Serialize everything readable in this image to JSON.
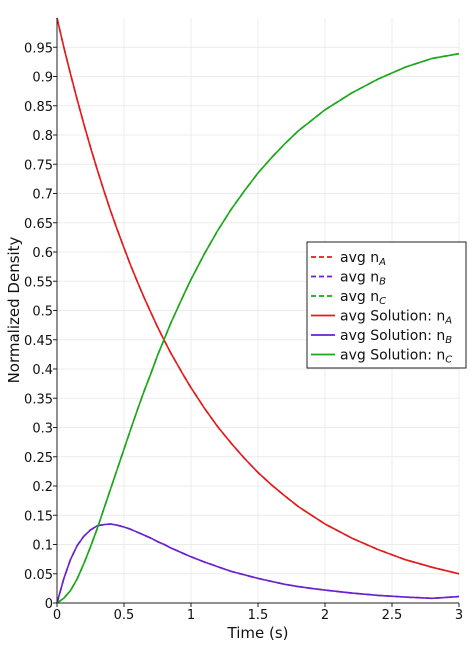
{
  "chart_data": {
    "type": "line",
    "xlabel": "Time (s)",
    "ylabel": "Normalized Density",
    "xlim": [
      0,
      3
    ],
    "ylim": [
      0,
      1
    ],
    "x_ticks": [
      "0",
      "0.5",
      "1",
      "1.5",
      "2",
      "2.5",
      "3"
    ],
    "x_tick_values": [
      0,
      0.5,
      1,
      1.5,
      2,
      2.5,
      3
    ],
    "y_ticks": [
      "0",
      "0.05",
      "0.1",
      "0.15",
      "0.2",
      "0.25",
      "0.3",
      "0.35",
      "0.4",
      "0.45",
      "0.5",
      "0.55",
      "0.6",
      "0.65",
      "0.7",
      "0.75",
      "0.8",
      "0.85",
      "0.9",
      "0.95"
    ],
    "y_tick_values": [
      0,
      0.05,
      0.1,
      0.15,
      0.2,
      0.25,
      0.3,
      0.35,
      0.4,
      0.45,
      0.5,
      0.55,
      0.6,
      0.65,
      0.7,
      0.75,
      0.8,
      0.85,
      0.9,
      0.95
    ],
    "grid": true,
    "legend_placement": "right",
    "x": [
      0,
      0.05,
      0.1,
      0.15,
      0.2,
      0.25,
      0.3,
      0.35,
      0.4,
      0.45,
      0.5,
      0.55,
      0.6,
      0.65,
      0.7,
      0.75,
      0.8,
      0.85,
      0.9,
      0.95,
      1.0,
      1.1,
      1.2,
      1.3,
      1.4,
      1.5,
      1.6,
      1.7,
      1.8,
      1.9,
      2.0,
      2.2,
      2.4,
      2.6,
      2.8,
      3.0
    ],
    "series": [
      {
        "name": "avg n_A",
        "name_main": "avg n",
        "name_sub": "A",
        "color": "#e41a1c",
        "dash": true,
        "values": [
          1.0,
          0.951,
          0.905,
          0.861,
          0.819,
          0.779,
          0.741,
          0.705,
          0.67,
          0.638,
          0.607,
          0.577,
          0.549,
          0.522,
          0.497,
          0.472,
          0.449,
          0.427,
          0.407,
          0.387,
          0.368,
          0.333,
          0.301,
          0.273,
          0.247,
          0.223,
          0.202,
          0.183,
          0.165,
          0.15,
          0.135,
          0.111,
          0.091,
          0.074,
          0.061,
          0.05
        ]
      },
      {
        "name": "avg n_B",
        "name_main": "avg n",
        "name_sub": "B",
        "color": "#6a1fd0",
        "dash": true,
        "values": [
          0,
          0.041,
          0.074,
          0.098,
          0.114,
          0.125,
          0.132,
          0.134,
          0.135,
          0.133,
          0.13,
          0.126,
          0.121,
          0.116,
          0.111,
          0.105,
          0.1,
          0.094,
          0.089,
          0.084,
          0.079,
          0.07,
          0.062,
          0.054,
          0.048,
          0.042,
          0.037,
          0.032,
          0.028,
          0.025,
          0.022,
          0.017,
          0.013,
          0.01,
          0.008,
          0.011
        ]
      },
      {
        "name": "avg n_C",
        "name_main": "avg n",
        "name_sub": "C",
        "color": "#1aa81a",
        "dash": true,
        "values": [
          0,
          0.008,
          0.021,
          0.041,
          0.067,
          0.096,
          0.127,
          0.161,
          0.195,
          0.229,
          0.263,
          0.297,
          0.33,
          0.362,
          0.392,
          0.423,
          0.451,
          0.479,
          0.504,
          0.529,
          0.553,
          0.597,
          0.637,
          0.673,
          0.705,
          0.735,
          0.761,
          0.785,
          0.807,
          0.825,
          0.843,
          0.872,
          0.896,
          0.916,
          0.931,
          0.939
        ]
      },
      {
        "name": "avg Solution: n_A",
        "name_main": "avg Solution: n",
        "name_sub": "A",
        "color": "#e41a1c",
        "dash": false,
        "values": [
          1.0,
          0.951,
          0.905,
          0.861,
          0.819,
          0.779,
          0.741,
          0.705,
          0.67,
          0.638,
          0.607,
          0.577,
          0.549,
          0.522,
          0.497,
          0.472,
          0.449,
          0.427,
          0.407,
          0.387,
          0.368,
          0.333,
          0.301,
          0.273,
          0.247,
          0.223,
          0.202,
          0.183,
          0.165,
          0.15,
          0.135,
          0.111,
          0.091,
          0.074,
          0.061,
          0.05
        ]
      },
      {
        "name": "avg Solution: n_B",
        "name_main": "avg Solution: n",
        "name_sub": "B",
        "color": "#6a1fd0",
        "dash": false,
        "values": [
          0,
          0.041,
          0.074,
          0.098,
          0.114,
          0.125,
          0.132,
          0.134,
          0.135,
          0.133,
          0.13,
          0.126,
          0.121,
          0.116,
          0.111,
          0.105,
          0.1,
          0.094,
          0.089,
          0.084,
          0.079,
          0.07,
          0.062,
          0.054,
          0.048,
          0.042,
          0.037,
          0.032,
          0.028,
          0.025,
          0.022,
          0.017,
          0.013,
          0.01,
          0.008,
          0.011
        ]
      },
      {
        "name": "avg Solution: n_C",
        "name_main": "avg Solution: n",
        "name_sub": "C",
        "color": "#1aa81a",
        "dash": false,
        "values": [
          0,
          0.008,
          0.021,
          0.041,
          0.067,
          0.096,
          0.127,
          0.161,
          0.195,
          0.229,
          0.263,
          0.297,
          0.33,
          0.362,
          0.392,
          0.423,
          0.451,
          0.479,
          0.504,
          0.529,
          0.553,
          0.597,
          0.637,
          0.673,
          0.705,
          0.735,
          0.761,
          0.785,
          0.807,
          0.825,
          0.843,
          0.872,
          0.896,
          0.916,
          0.931,
          0.939
        ]
      }
    ]
  }
}
